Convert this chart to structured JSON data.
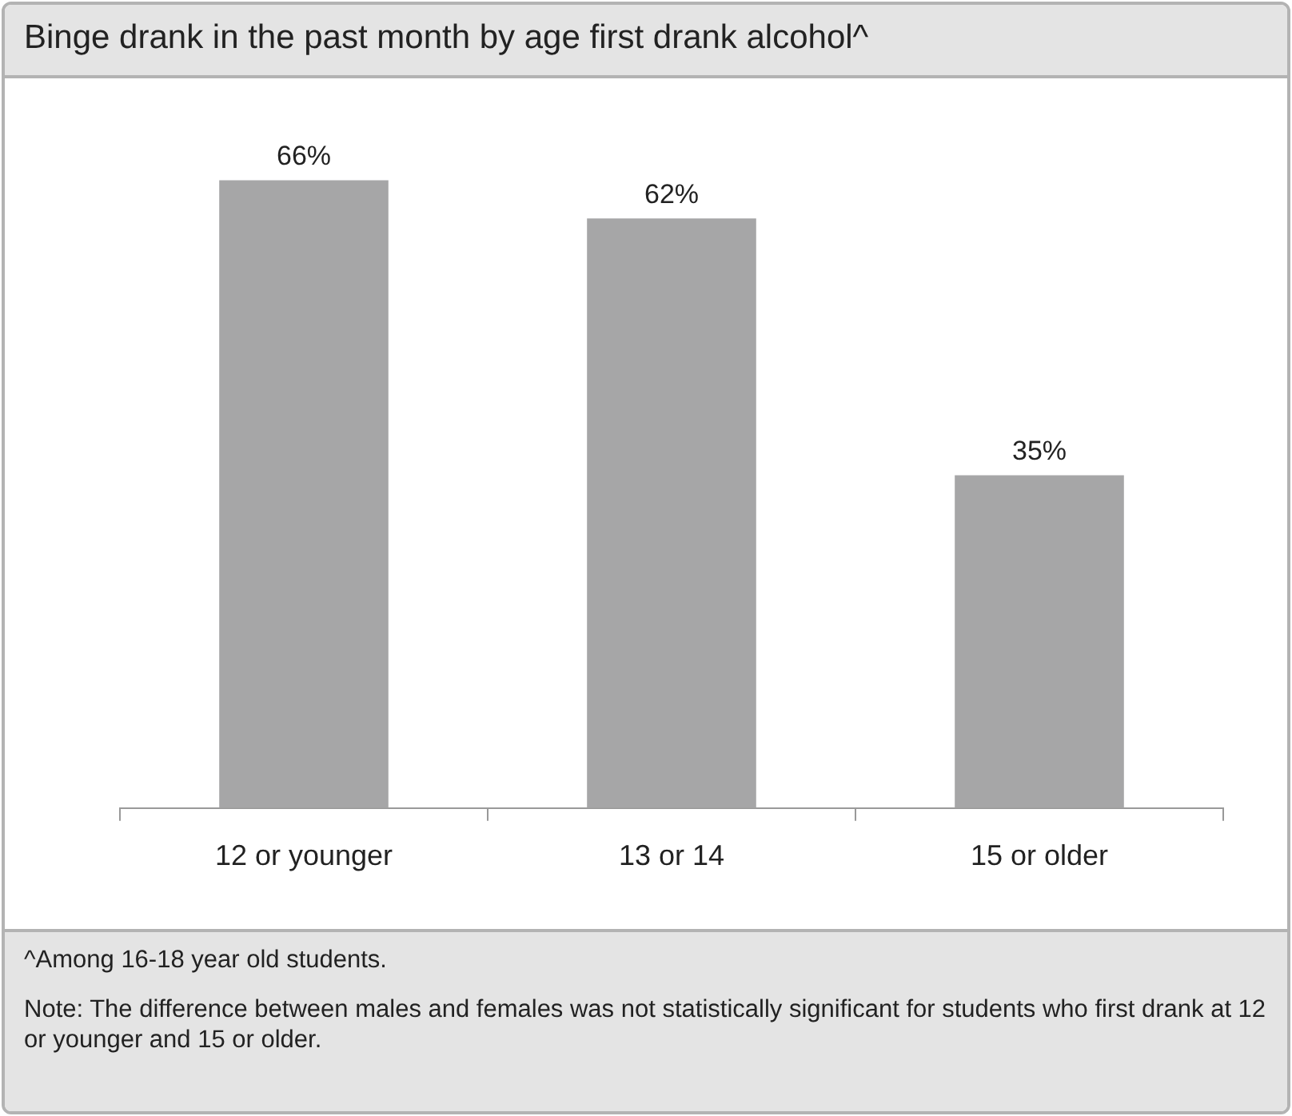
{
  "chart_data": {
    "type": "bar",
    "title": "Binge drank in the past month by age first drank alcohol^",
    "categories": [
      "12 or younger",
      "13 or 14",
      "15 or older"
    ],
    "values": [
      66,
      62,
      35
    ],
    "value_labels": [
      "66%",
      "62%",
      "35%"
    ],
    "color": "#a6a6a7",
    "grid": false,
    "legend": false,
    "annotations": [
      "^Among 16-18 year old students.",
      "Note: The difference between males and females was not statistically significant for students who first drank at 12 or younger and 15 or older."
    ]
  }
}
